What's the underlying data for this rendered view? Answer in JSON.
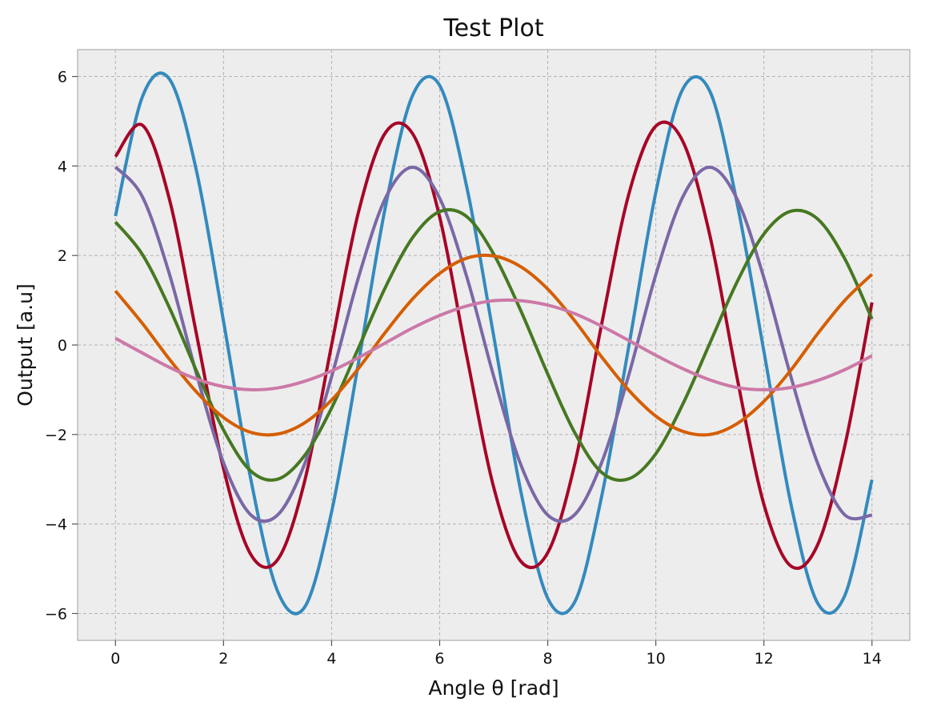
{
  "chart_data": {
    "type": "line",
    "title": "Test Plot",
    "xlabel": "Angle θ [rad]",
    "ylabel": "Output [a.u]",
    "xlim": [
      -0.7,
      14.7
    ],
    "ylim": [
      -6.6,
      6.6
    ],
    "xticks": [
      0,
      2,
      4,
      6,
      8,
      10,
      12,
      14
    ],
    "yticks": [
      -6,
      -4,
      -2,
      0,
      2,
      4,
      6
    ],
    "grid": true,
    "x": [
      0,
      0.5,
      1,
      1.5,
      2,
      2.5,
      3,
      3.5,
      4,
      4.5,
      5,
      5.5,
      6,
      6.5,
      7,
      7.5,
      8,
      8.5,
      9,
      9.5,
      10,
      10.5,
      11,
      11.5,
      12,
      12.5,
      13,
      13.5,
      14
    ],
    "series": [
      {
        "color": "#348ABD",
        "values": [
          2.88,
          5.55,
          5.94,
          3.89,
          0.53,
          -2.97,
          -5.5,
          -5.86,
          -3.73,
          -0.38,
          3.11,
          5.58,
          5.8,
          3.54,
          0.2,
          -3.26,
          -5.66,
          -5.74,
          -3.37,
          -0.03,
          3.41,
          5.72,
          5.67,
          3.19,
          -0.14,
          -3.55,
          -5.78,
          -5.59,
          -3.01
        ]
      },
      {
        "color": "#A60628",
        "values": [
          4.21,
          4.91,
          3.25,
          0.24,
          -2.76,
          -4.67,
          -4.8,
          -3.05,
          -0.0,
          2.98,
          4.75,
          4.72,
          2.86,
          -0.24,
          -3.18,
          -4.83,
          -4.64,
          -2.66,
          0.48,
          3.37,
          4.89,
          4.55,
          2.45,
          -0.71,
          -3.56,
          -4.94,
          -4.45,
          -2.24,
          0.95
        ]
      },
      {
        "color": "#7A68A6",
        "values": [
          3.98,
          3.31,
          1.58,
          -0.65,
          -2.63,
          -3.79,
          -3.8,
          -2.66,
          -0.71,
          1.52,
          3.29,
          3.97,
          3.28,
          1.53,
          -0.7,
          -2.67,
          -3.8,
          -3.79,
          -2.62,
          -0.67,
          1.57,
          3.31,
          3.97,
          3.27,
          1.5,
          -0.71,
          -2.66,
          -3.8,
          -3.8
        ]
      },
      {
        "color": "#467821",
        "values": [
          2.75,
          2.02,
          0.83,
          -0.58,
          -1.9,
          -2.81,
          -3.0,
          -2.47,
          -1.41,
          -0.06,
          1.3,
          2.4,
          2.98,
          2.87,
          2.03,
          0.77,
          -0.65,
          -1.96,
          -2.85,
          -2.99,
          -2.43,
          -1.32,
          0.04,
          1.4,
          2.48,
          2.99,
          2.81,
          1.92,
          0.58
        ]
      },
      {
        "color": "#D55E00",
        "values": [
          1.21,
          0.48,
          -0.32,
          -1.05,
          -1.62,
          -1.95,
          -1.99,
          -1.74,
          -1.23,
          -0.52,
          0.29,
          1.03,
          1.6,
          1.94,
          1.99,
          1.75,
          1.25,
          0.54,
          -0.27,
          -1.01,
          -1.59,
          -1.93,
          -2.0,
          -1.76,
          -1.26,
          -0.56,
          0.26,
          1.0,
          1.58
        ]
      },
      {
        "color": "#CC79A7",
        "values": [
          0.15,
          -0.18,
          -0.5,
          -0.76,
          -0.93,
          -1.0,
          -0.96,
          -0.81,
          -0.58,
          -0.28,
          0.05,
          0.38,
          0.66,
          0.87,
          0.99,
          0.99,
          0.89,
          0.7,
          0.42,
          0.1,
          -0.23,
          -0.53,
          -0.78,
          -0.95,
          -1.0,
          -0.95,
          -0.79,
          -0.55,
          -0.24
        ]
      }
    ]
  }
}
